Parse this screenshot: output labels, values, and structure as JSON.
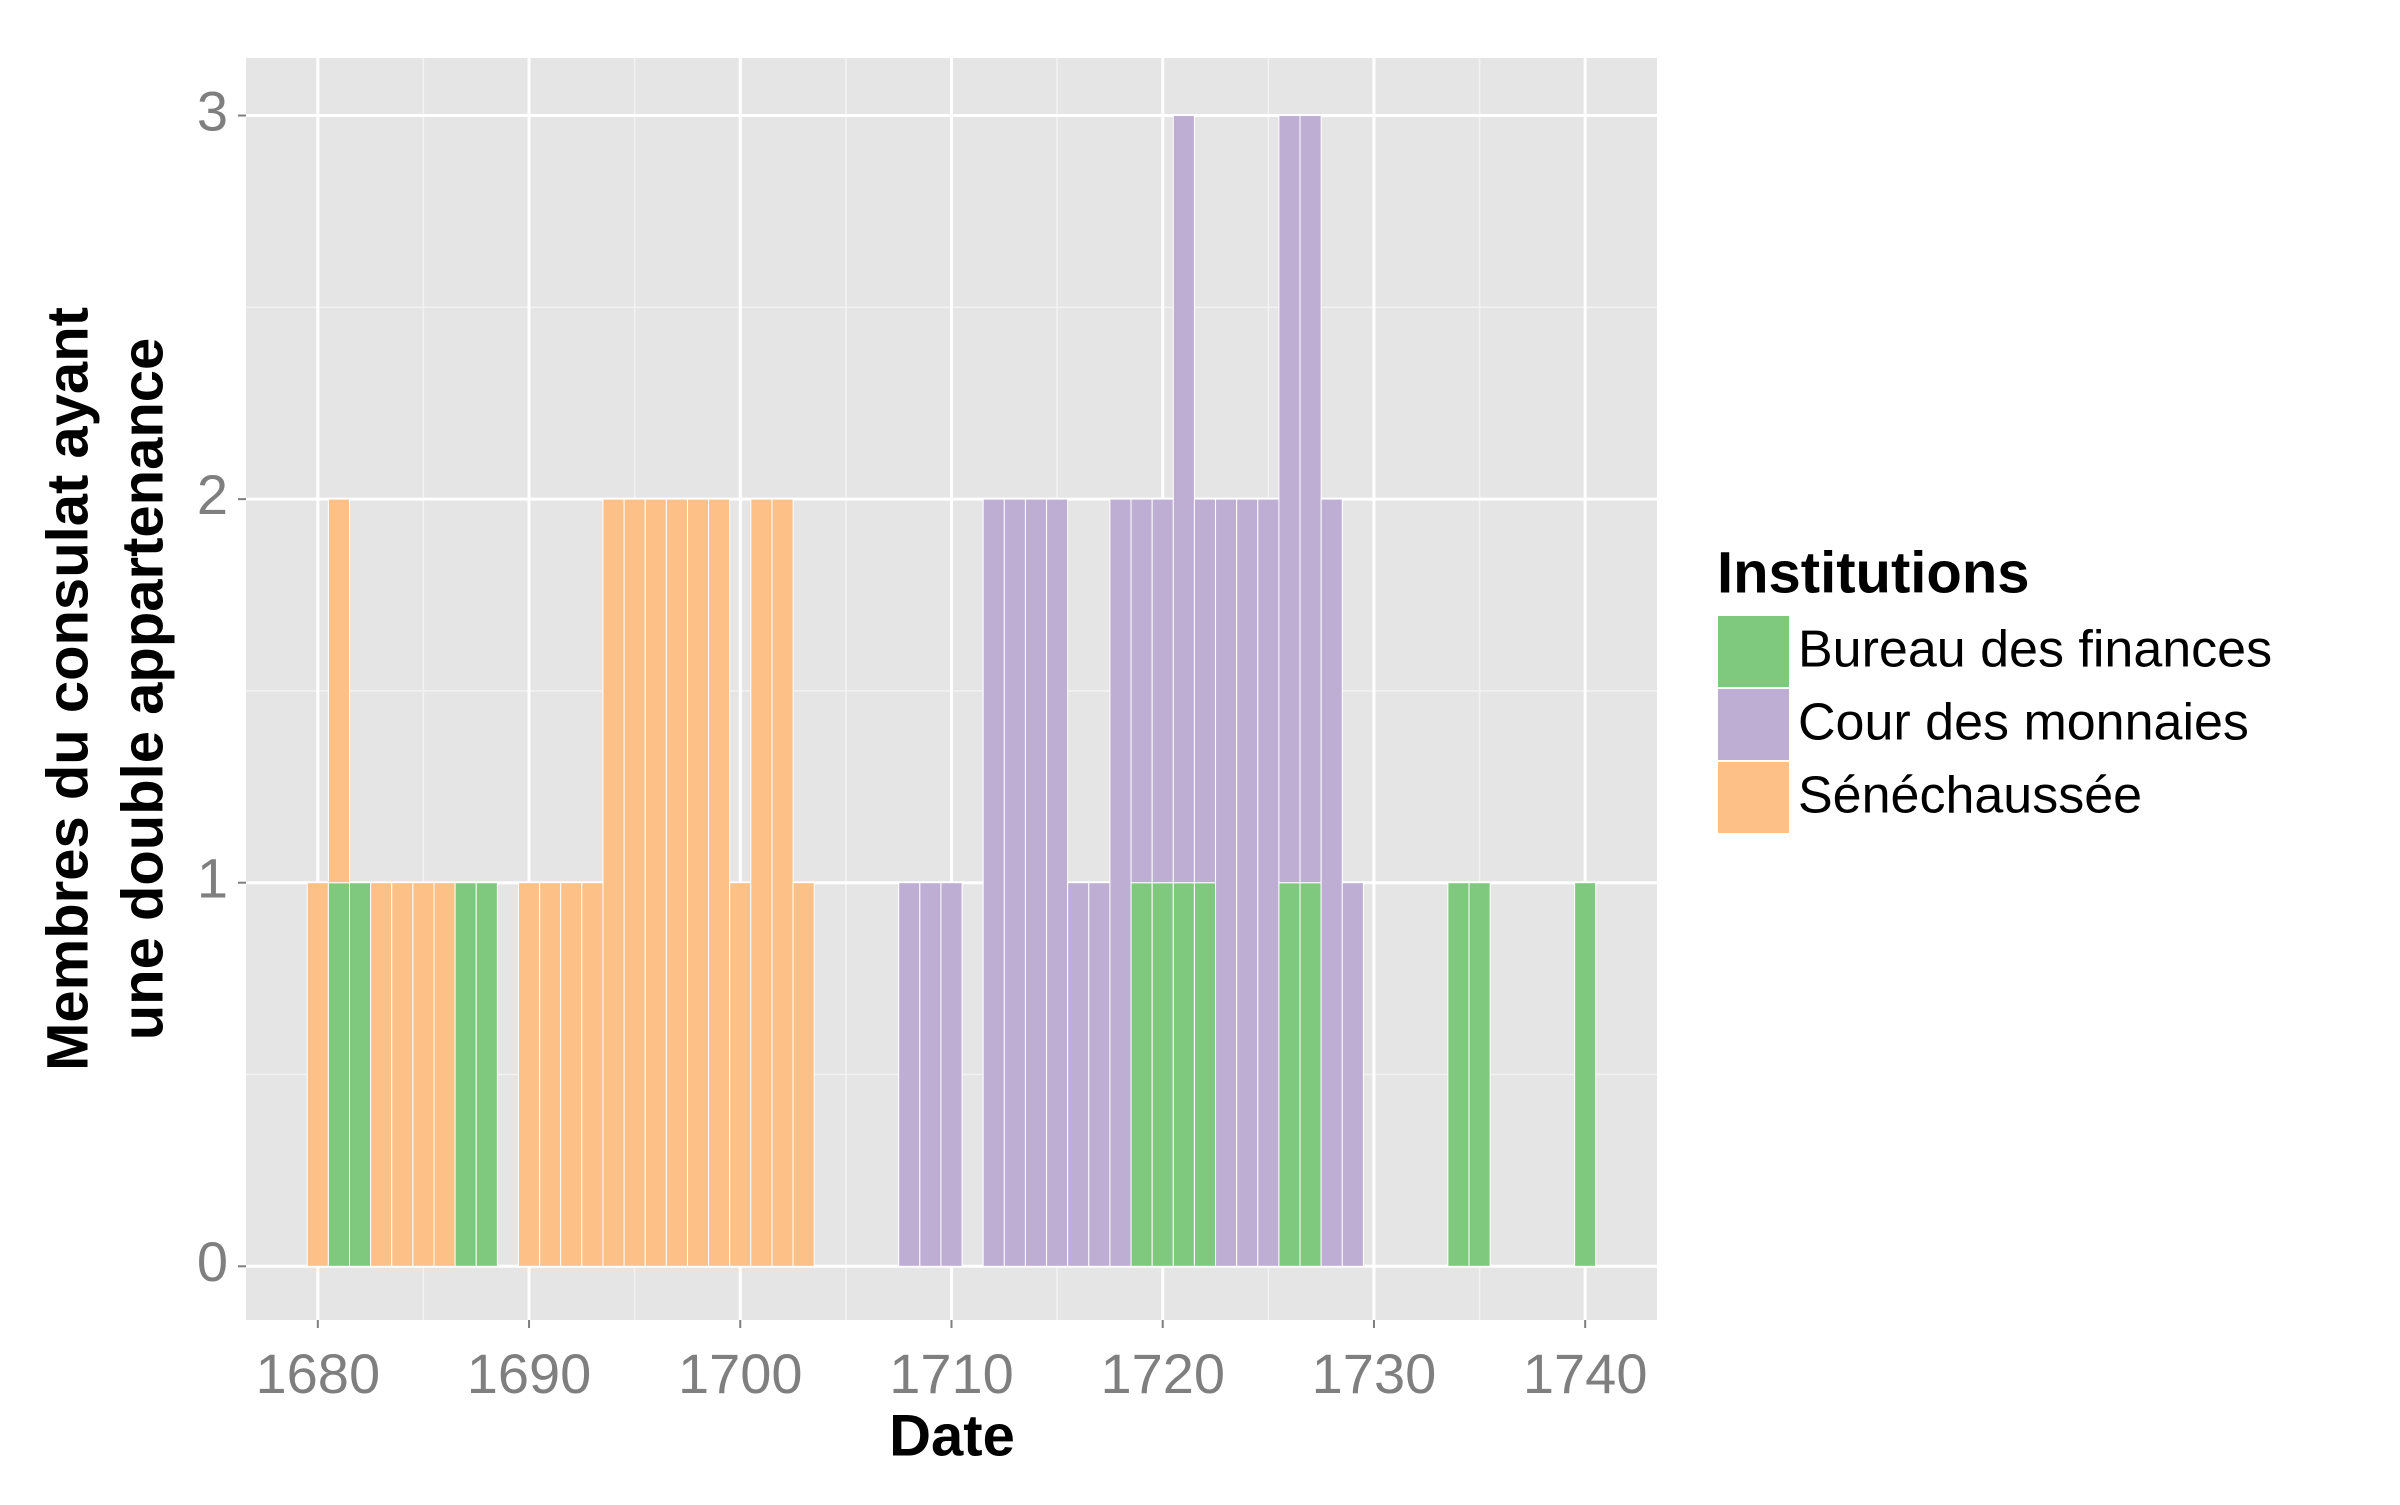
{
  "chart_data": {
    "type": "bar",
    "stacked": true,
    "xlabel": "Date",
    "ylabel": [
      "Membres du consulat ayant",
      "une double appartenance"
    ],
    "legend_title": "Institutions",
    "legend_position": "right",
    "grid": true,
    "x": [
      1680,
      1681,
      1682,
      1683,
      1684,
      1685,
      1686,
      1687,
      1688,
      1690,
      1691,
      1692,
      1693,
      1694,
      1695,
      1696,
      1697,
      1698,
      1699,
      1700,
      1701,
      1702,
      1703,
      1708,
      1709,
      1710,
      1712,
      1713,
      1714,
      1715,
      1716,
      1717,
      1718,
      1719,
      1720,
      1721,
      1722,
      1723,
      1724,
      1725,
      1726,
      1727,
      1728,
      1729,
      1734,
      1735,
      1740
    ],
    "series": [
      {
        "name": "Bureau des finances",
        "color": "#7fc97f",
        "values": [
          null,
          1,
          1,
          null,
          null,
          null,
          null,
          1,
          1,
          null,
          null,
          null,
          null,
          null,
          null,
          null,
          null,
          null,
          null,
          null,
          null,
          null,
          null,
          null,
          null,
          null,
          null,
          null,
          null,
          null,
          null,
          null,
          null,
          1,
          1,
          1,
          1,
          null,
          null,
          null,
          1,
          1,
          null,
          null,
          1,
          1,
          1
        ]
      },
      {
        "name": "Cour des monnaies",
        "color": "#beaed4",
        "values": [
          null,
          null,
          null,
          null,
          null,
          null,
          null,
          null,
          null,
          null,
          null,
          null,
          null,
          null,
          null,
          null,
          null,
          null,
          null,
          null,
          null,
          null,
          null,
          1,
          1,
          1,
          2,
          2,
          2,
          2,
          1,
          1,
          2,
          1,
          1,
          2,
          1,
          2,
          2,
          2,
          2,
          2,
          2,
          1,
          null,
          null,
          null
        ]
      },
      {
        "name": "Sénéchaussée",
        "color": "#fdc086",
        "values": [
          1,
          1,
          null,
          1,
          1,
          1,
          1,
          null,
          null,
          1,
          1,
          1,
          1,
          2,
          2,
          2,
          2,
          2,
          2,
          1,
          2,
          2,
          1,
          null,
          null,
          null,
          null,
          null,
          null,
          null,
          null,
          null,
          null,
          null,
          null,
          null,
          null,
          null,
          null,
          null,
          null,
          null,
          null,
          null,
          null,
          null,
          null
        ]
      }
    ],
    "xlim": [
      1676.6,
      1743.4
    ],
    "xticks": [
      1680,
      1690,
      1700,
      1710,
      1720,
      1730,
      1740
    ],
    "ylim": [
      -0.14,
      3.15
    ],
    "yticks": [
      0,
      1,
      2,
      3
    ]
  }
}
